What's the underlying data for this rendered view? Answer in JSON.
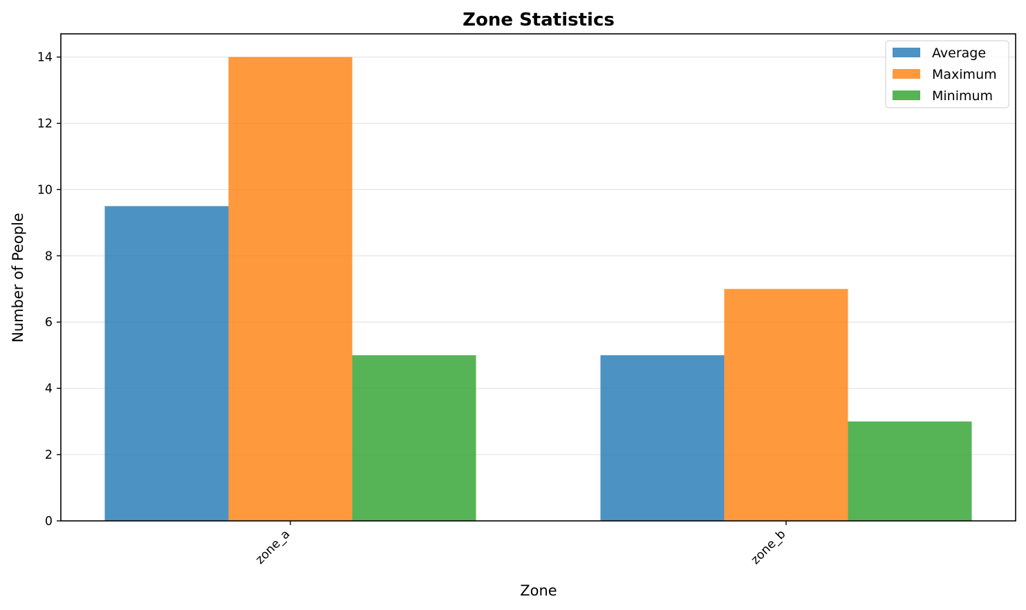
{
  "chart_data": {
    "type": "bar",
    "title": "Zone Statistics",
    "xlabel": "Zone",
    "ylabel": "Number of People",
    "categories": [
      "zone_a",
      "zone_b"
    ],
    "series": [
      {
        "name": "Average",
        "values": [
          9.5,
          5
        ],
        "color": "#1f77b4"
      },
      {
        "name": "Maximum",
        "values": [
          14,
          7
        ],
        "color": "#ff7f0e"
      },
      {
        "name": "Minimum",
        "values": [
          5,
          3
        ],
        "color": "#2ca02c"
      }
    ],
    "ylim": [
      0,
      14.7
    ],
    "yticks": [
      0,
      2,
      4,
      6,
      8,
      10,
      12,
      14
    ],
    "grid": "horizontal",
    "legend_position": "top-right"
  }
}
